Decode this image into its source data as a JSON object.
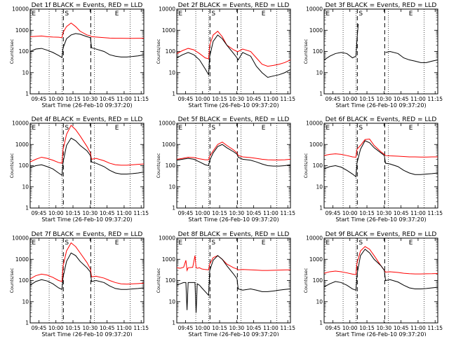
{
  "figure": {
    "xlabel": "Start Time (26-Feb-10 09:37:20)",
    "ylabel": "Counts/sec",
    "x_ticks": [
      "09:45",
      "10:00",
      "10:15",
      "10:30",
      "10:45",
      "11:00",
      "11:15"
    ],
    "x_tick_minutes": [
      7.67,
      22.67,
      37.67,
      52.67,
      67.67,
      82.67,
      97.67
    ],
    "xlim_minutes": [
      0,
      100
    ],
    "y_ticks": [
      "1",
      "10",
      "100",
      "1000",
      "10000"
    ],
    "y_tick_values": [
      1,
      10,
      100,
      1000,
      10000
    ],
    "ylim": [
      1,
      10000
    ],
    "y_scale": "log",
    "series_colors": {
      "events": "#000000",
      "lld": "#ff0000"
    },
    "markers": {
      "E": "E",
      "S": "S"
    },
    "dotted_lines_minutes": [
      16.7,
      28.0,
      56.5,
      88.0
    ],
    "dashed_lines_minutes": [
      29.2,
      53.3
    ]
  },
  "chart_data": [
    {
      "type": "line",
      "title": "Det 1f BLACK = Events, RED = LLD",
      "x": [
        0,
        5,
        10,
        15,
        20,
        25,
        28,
        29,
        32,
        36,
        40,
        44,
        50,
        53,
        54,
        58,
        65,
        70,
        75,
        80,
        85,
        90,
        95,
        100
      ],
      "series": [
        {
          "values": [
            100,
            130,
            140,
            115,
            90,
            65,
            52,
            150,
            400,
            600,
            700,
            650,
            500,
            450,
            150,
            130,
            100,
            70,
            60,
            55,
            55,
            58,
            62,
            70
          ]
        },
        {
          "values": [
            500,
            520,
            540,
            500,
            480,
            470,
            450,
            800,
            1500,
            2200,
            1500,
            900,
            600,
            550,
            500,
            480,
            450,
            430,
            420,
            420,
            415,
            415,
            420,
            420
          ]
        }
      ]
    },
    {
      "type": "line",
      "title": "Det 2f BLACK = Events, RED = LLD",
      "x": [
        0,
        5,
        10,
        15,
        20,
        25,
        28,
        29,
        32,
        36,
        40,
        44,
        50,
        53,
        54,
        58,
        65,
        70,
        75,
        80,
        85,
        90,
        95,
        100
      ],
      "series": [
        {
          "values": [
            50,
            70,
            90,
            70,
            40,
            15,
            8,
            60,
            300,
            600,
            400,
            200,
            80,
            50,
            40,
            90,
            60,
            20,
            10,
            6,
            7,
            8,
            10,
            14
          ]
        },
        {
          "values": [
            80,
            110,
            140,
            120,
            80,
            50,
            45,
            200,
            600,
            900,
            500,
            200,
            120,
            100,
            100,
            130,
            100,
            50,
            25,
            20,
            22,
            25,
            30,
            40
          ]
        }
      ]
    },
    {
      "type": "line",
      "title": "Det 3f BLACK = Events, RED = LLD",
      "x": [
        0,
        5,
        10,
        15,
        20,
        25,
        28,
        29,
        30,
        53.3,
        54,
        58,
        65,
        70,
        75,
        80,
        85,
        90,
        95,
        100
      ],
      "series": [
        {
          "values": [
            40,
            60,
            80,
            90,
            80,
            50,
            60,
            400,
            2000,
            null,
            90,
            100,
            80,
            50,
            40,
            35,
            30,
            30,
            35,
            40
          ]
        }
      ]
    },
    {
      "type": "line",
      "title": "Det 4f BLACK = Events, RED = LLD",
      "x": [
        0,
        5,
        10,
        15,
        20,
        25,
        28,
        29,
        32,
        36,
        40,
        44,
        50,
        53,
        54,
        58,
        65,
        70,
        75,
        80,
        85,
        90,
        95,
        100
      ],
      "series": [
        {
          "values": [
            80,
            100,
            110,
            90,
            70,
            45,
            35,
            150,
            900,
            2000,
            1500,
            900,
            500,
            300,
            150,
            130,
            90,
            60,
            45,
            40,
            40,
            42,
            45,
            50
          ]
        },
        {
          "values": [
            150,
            200,
            250,
            220,
            180,
            140,
            130,
            600,
            3000,
            8000,
            5000,
            2500,
            800,
            400,
            200,
            220,
            170,
            130,
            110,
            105,
            105,
            110,
            115,
            120
          ]
        }
      ]
    },
    {
      "type": "line",
      "title": "Det 5f BLACK = Events, RED = LLD",
      "x": [
        0,
        5,
        10,
        15,
        20,
        25,
        28,
        29,
        32,
        36,
        40,
        44,
        50,
        53,
        54,
        58,
        65,
        70,
        75,
        80,
        85,
        90,
        95,
        100
      ],
      "series": [
        {
          "values": [
            180,
            200,
            220,
            200,
            150,
            110,
            100,
            180,
            400,
            800,
            1000,
            700,
            450,
            350,
            250,
            200,
            180,
            150,
            120,
            100,
            95,
            95,
            100,
            110
          ]
        },
        {
          "values": [
            200,
            220,
            250,
            240,
            210,
            190,
            190,
            280,
            500,
            1000,
            1300,
            900,
            550,
            400,
            300,
            260,
            240,
            220,
            200,
            190,
            185,
            185,
            190,
            200
          ]
        }
      ]
    },
    {
      "type": "line",
      "title": "Det 6f BLACK = Events, RED = LLD",
      "x": [
        0,
        5,
        10,
        15,
        20,
        25,
        28,
        29,
        32,
        36,
        40,
        44,
        50,
        53,
        54,
        58,
        65,
        70,
        75,
        80,
        85,
        90,
        95,
        100
      ],
      "series": [
        {
          "values": [
            70,
            90,
            100,
            85,
            60,
            40,
            30,
            140,
            600,
            1500,
            1200,
            700,
            400,
            300,
            130,
            120,
            90,
            60,
            45,
            38,
            38,
            40,
            42,
            45
          ]
        },
        {
          "values": [
            300,
            340,
            360,
            340,
            300,
            260,
            250,
            600,
            900,
            1700,
            1800,
            900,
            450,
            340,
            300,
            290,
            280,
            270,
            260,
            260,
            255,
            255,
            258,
            260
          ]
        }
      ]
    },
    {
      "type": "line",
      "title": "Det 7f BLACK = Events, RED = LLD",
      "x": [
        0,
        5,
        10,
        15,
        20,
        25,
        28,
        29,
        32,
        36,
        40,
        44,
        50,
        53,
        54,
        58,
        65,
        70,
        75,
        80,
        85,
        90,
        95,
        100
      ],
      "series": [
        {
          "values": [
            60,
            90,
            110,
            95,
            70,
            45,
            38,
            150,
            800,
            2000,
            1500,
            800,
            400,
            250,
            90,
            100,
            80,
            55,
            42,
            38,
            38,
            40,
            42,
            45
          ]
        },
        {
          "values": [
            120,
            170,
            200,
            180,
            140,
            100,
            90,
            500,
            2500,
            6000,
            4000,
            2000,
            700,
            350,
            150,
            160,
            130,
            100,
            80,
            70,
            68,
            70,
            72,
            75
          ]
        }
      ]
    },
    {
      "type": "line",
      "title": "Det 8f BLACK = Events, RED = LLD",
      "x": [
        0,
        3,
        6,
        8,
        9,
        10,
        14,
        16,
        17,
        18,
        20,
        22,
        25,
        28,
        29,
        32,
        36,
        40,
        44,
        50,
        53,
        54,
        58,
        65,
        70,
        75,
        80,
        85,
        90,
        95,
        100
      ],
      "series": [
        {
          "values": [
            60,
            70,
            80,
            80,
            4,
            80,
            80,
            80,
            3,
            70,
            60,
            45,
            30,
            20,
            300,
            900,
            1500,
            1000,
            500,
            200,
            120,
            40,
            35,
            40,
            35,
            30,
            30,
            32,
            35,
            38,
            40
          ]
        },
        {
          "values": [
            400,
            380,
            420,
            900,
            300,
            400,
            420,
            1500,
            400,
            380,
            400,
            350,
            330,
            320,
            600,
            1200,
            1500,
            1000,
            600,
            400,
            350,
            320,
            330,
            320,
            310,
            300,
            300,
            305,
            310,
            315,
            320
          ]
        }
      ]
    },
    {
      "type": "line",
      "title": "Det 9f BLACK = Events, RED = LLD",
      "x": [
        0,
        5,
        10,
        15,
        20,
        25,
        28,
        29,
        32,
        36,
        40,
        44,
        50,
        53,
        54,
        58,
        65,
        70,
        75,
        80,
        85,
        90,
        95,
        100
      ],
      "series": [
        {
          "values": [
            50,
            70,
            90,
            80,
            60,
            40,
            35,
            200,
            1500,
            3000,
            2000,
            1000,
            500,
            300,
            100,
            110,
            85,
            60,
            45,
            40,
            40,
            42,
            45,
            48
          ]
        },
        {
          "values": [
            220,
            260,
            280,
            260,
            230,
            200,
            190,
            700,
            2500,
            4000,
            3000,
            1500,
            500,
            300,
            250,
            260,
            240,
            220,
            210,
            205,
            205,
            208,
            210,
            215
          ]
        }
      ]
    }
  ]
}
